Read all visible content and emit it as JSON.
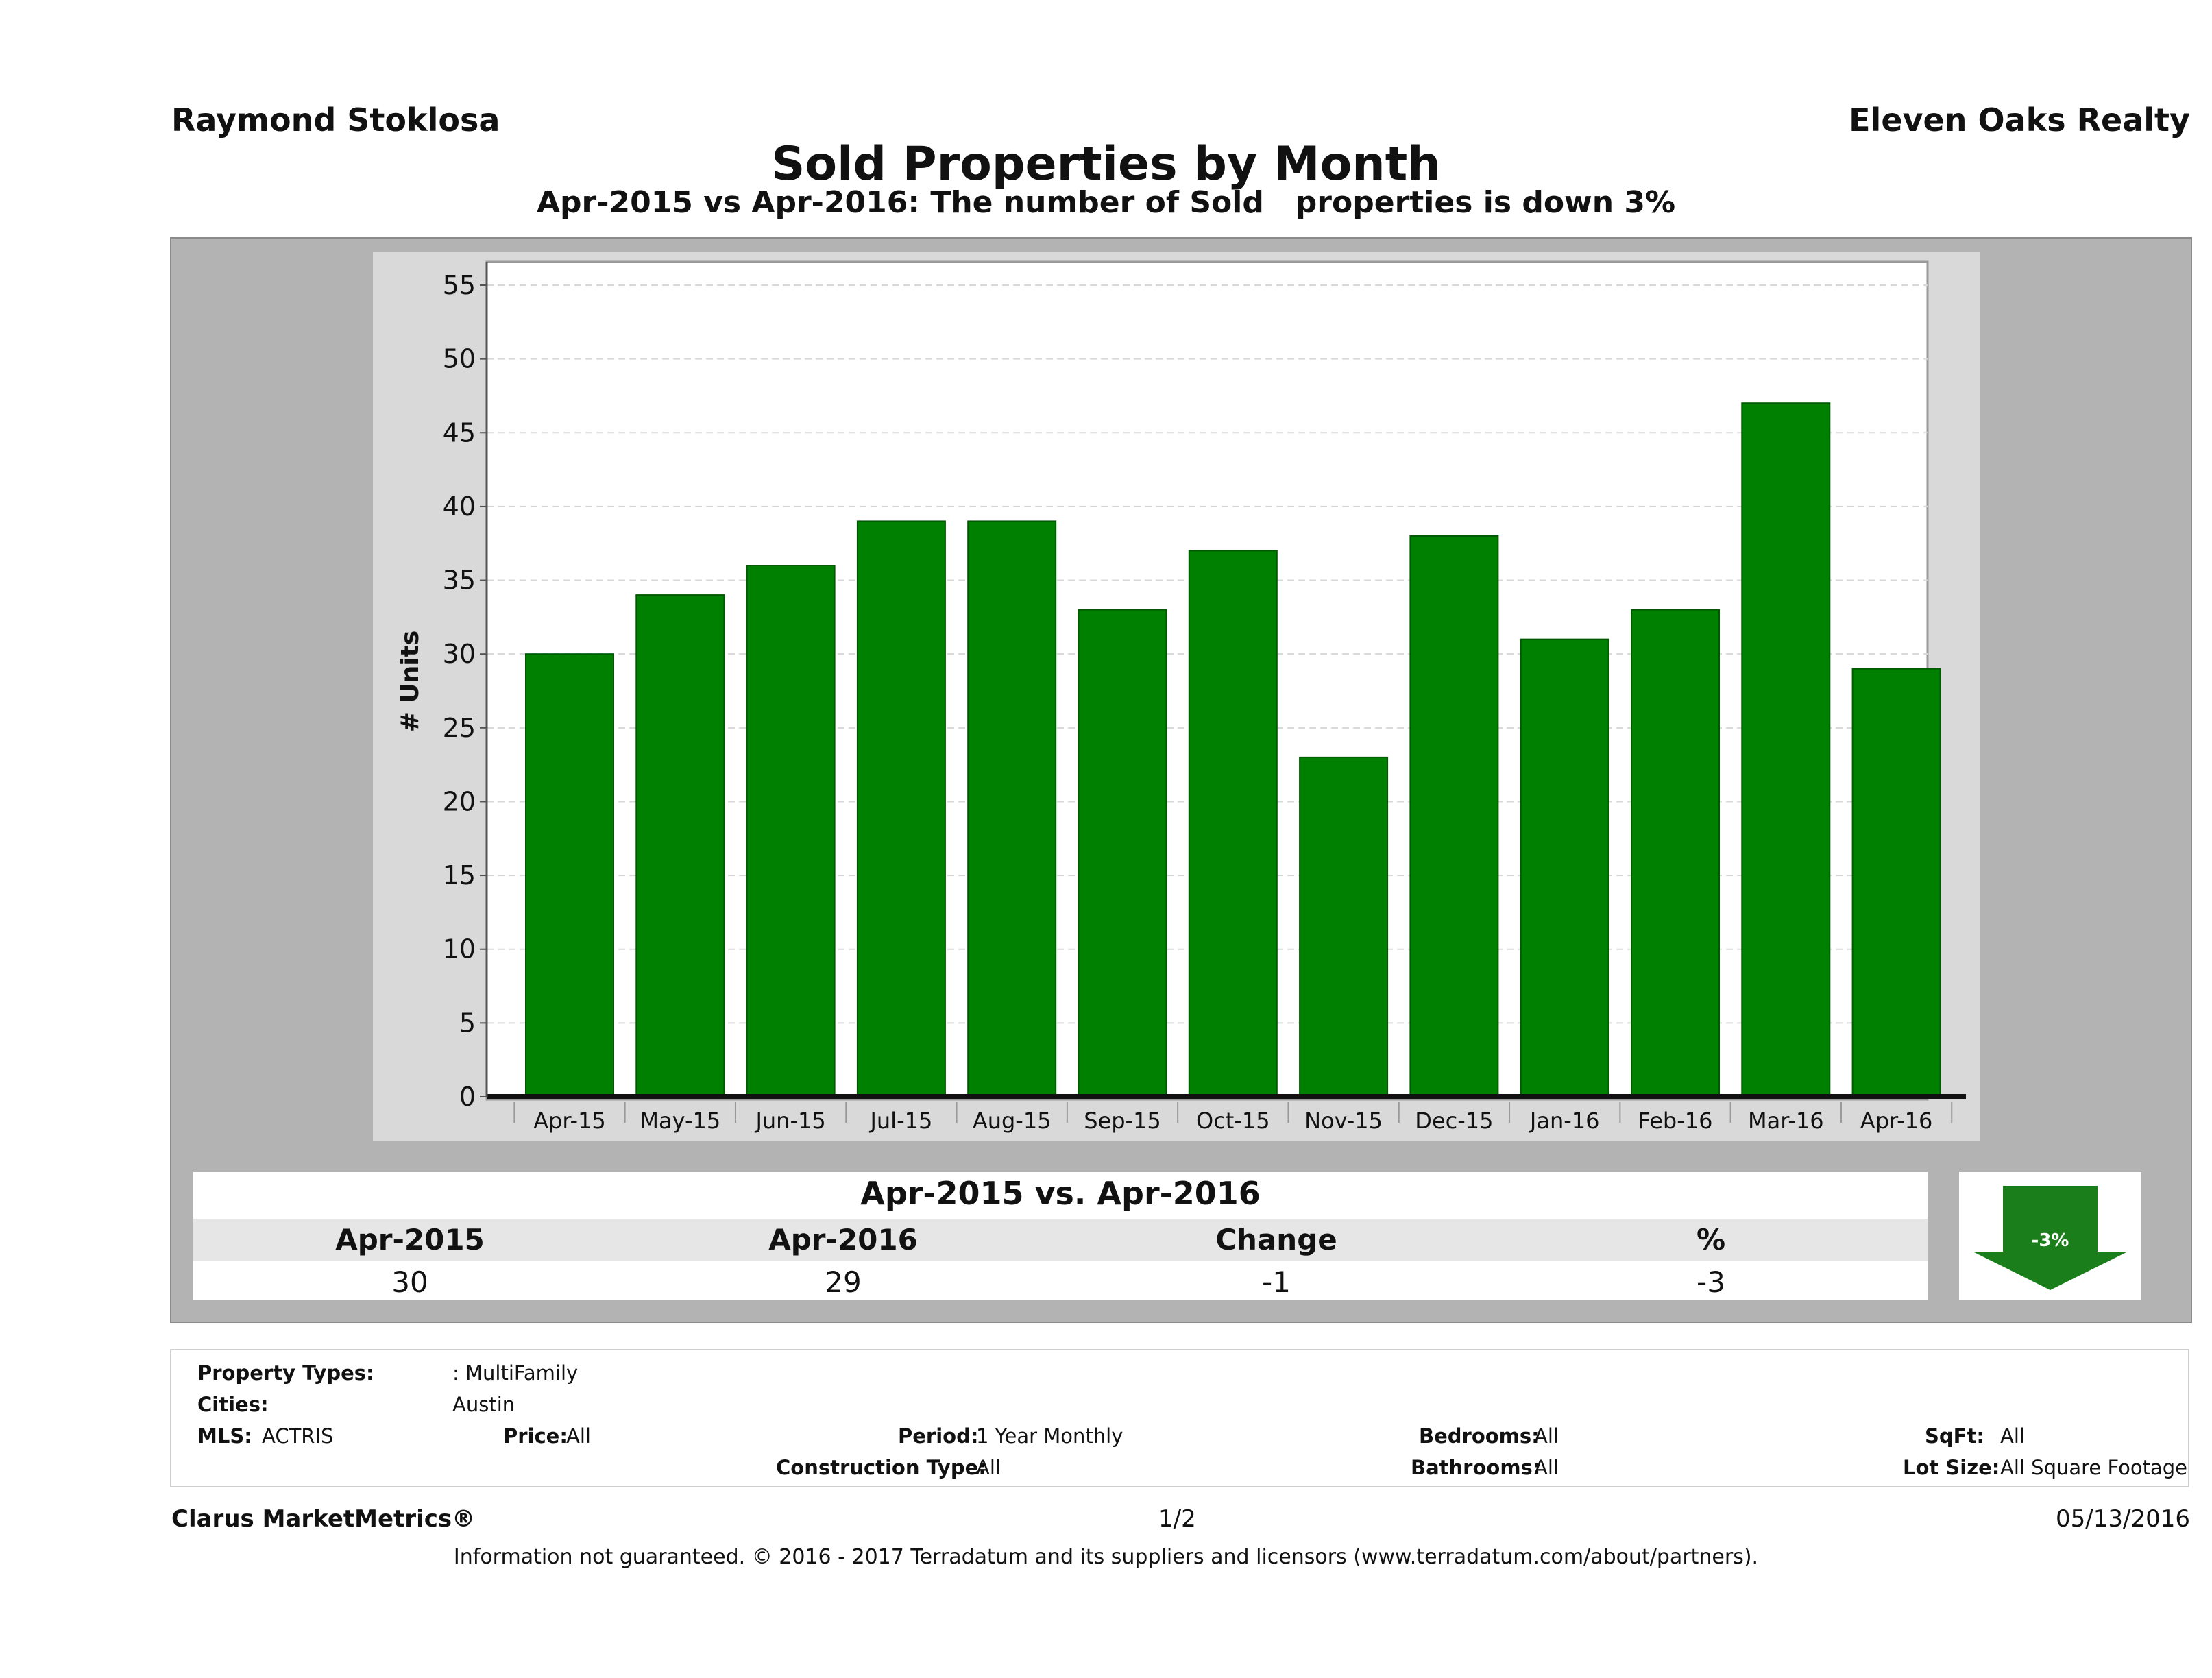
{
  "header": {
    "agent": "Raymond Stoklosa",
    "company": "Eleven Oaks Realty",
    "title": "Sold Properties by Month",
    "subtitle": "Apr-2015 vs Apr-2016: The number of Sold   properties is down 3%"
  },
  "chart_data": {
    "type": "bar",
    "categories": [
      "Apr-15",
      "May-15",
      "Jun-15",
      "Jul-15",
      "Aug-15",
      "Sep-15",
      "Oct-15",
      "Nov-15",
      "Dec-15",
      "Jan-16",
      "Feb-16",
      "Mar-16",
      "Apr-16"
    ],
    "values": [
      30,
      34,
      36,
      39,
      39,
      33,
      37,
      23,
      38,
      31,
      33,
      47,
      29
    ],
    "ylabel": "# Units",
    "ylim": [
      0,
      55
    ],
    "yticks": [
      0,
      5,
      10,
      15,
      20,
      25,
      30,
      35,
      40,
      45,
      50,
      55
    ],
    "grid": true,
    "bar_color": "#008000"
  },
  "summary": {
    "title": "Apr-2015 vs. Apr-2016",
    "headers": [
      "Apr-2015",
      "Apr-2016",
      "Change",
      "%"
    ],
    "values": [
      "30",
      "29",
      "-1",
      "-3"
    ],
    "arrow_label": "-3%",
    "arrow_icon": "down-arrow-icon",
    "arrow_color": "#1a7f1a"
  },
  "filters": {
    "property_types_label": "Property Types:",
    "property_types_value": ": MultiFamily",
    "cities_label": "Cities:",
    "cities_value": "Austin",
    "mls_label": "MLS:",
    "mls_value": "ACTRIS",
    "price_label": "Price:",
    "price_value": "All",
    "period_label": "Period:",
    "period_value": "1 Year Monthly",
    "construction_label": "Construction Type:",
    "construction_value": "All",
    "bedrooms_label": "Bedrooms:",
    "bedrooms_value": "All",
    "bathrooms_label": "Bathrooms:",
    "bathrooms_value": "All",
    "sqft_label": "SqFt:",
    "sqft_value": "All",
    "lotsize_label": "Lot Size:",
    "lotsize_value": "All Square Footage"
  },
  "footer": {
    "brand": "Clarus MarketMetrics®",
    "page": "1/2",
    "date": "05/13/2016",
    "disclaimer": "Information not guaranteed. © 2016 - 2017 Terradatum and its suppliers and licensors (www.terradatum.com/about/partners)."
  }
}
